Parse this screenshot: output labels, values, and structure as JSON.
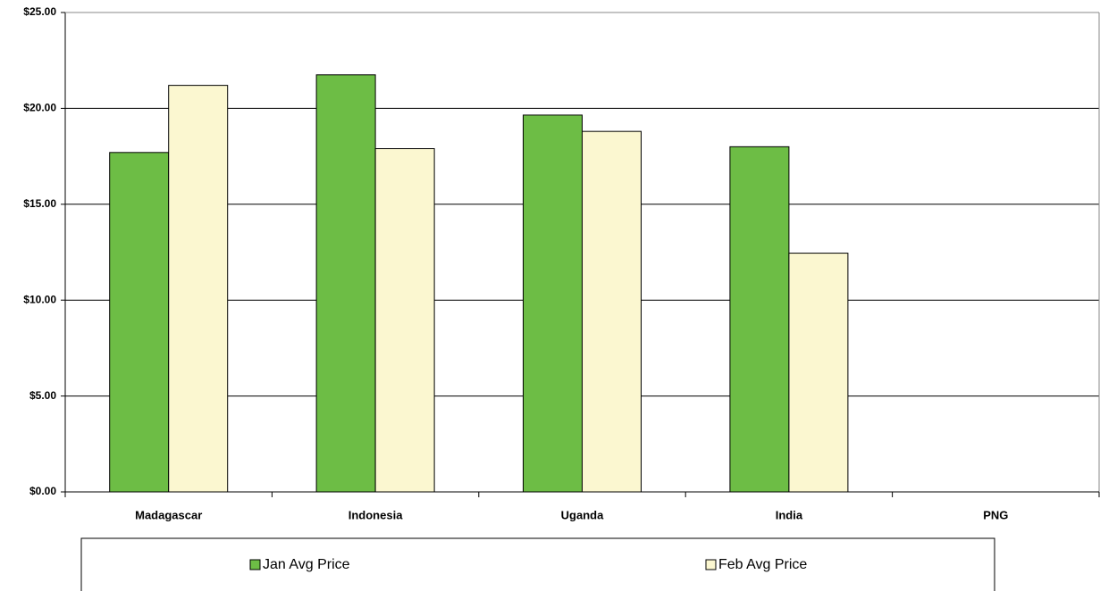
{
  "chart_data": {
    "type": "bar",
    "categories": [
      "Madagascar",
      "Indonesia",
      "Uganda",
      "India",
      "PNG"
    ],
    "series": [
      {
        "name": "Jan Avg Price",
        "color": "#6dbd45",
        "values": [
          17.7,
          21.75,
          19.65,
          18.0,
          null
        ]
      },
      {
        "name": "Feb Avg Price",
        "color": "#fbf7d0",
        "values": [
          21.2,
          17.9,
          18.8,
          12.45,
          null
        ]
      }
    ],
    "ylim": [
      0,
      25
    ],
    "yticks": [
      {
        "value": 0,
        "label": "$0.00"
      },
      {
        "value": 5,
        "label": "$5.00"
      },
      {
        "value": 10,
        "label": "$10.00"
      },
      {
        "value": 15,
        "label": "$15.00"
      },
      {
        "value": 20,
        "label": "$20.00"
      },
      {
        "value": 25,
        "label": "$25.00"
      }
    ],
    "grid": true,
    "legend": "bottom"
  }
}
